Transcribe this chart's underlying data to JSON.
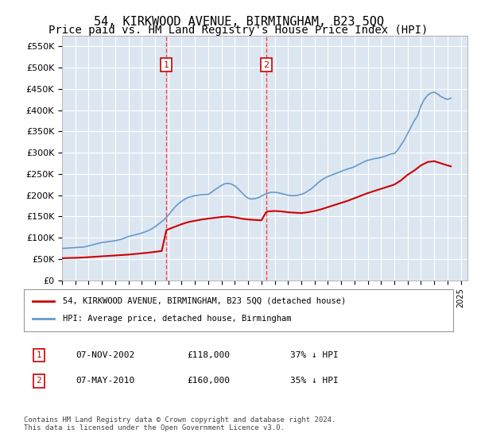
{
  "title": "54, KIRKWOOD AVENUE, BIRMINGHAM, B23 5QQ",
  "subtitle": "Price paid vs. HM Land Registry's House Price Index (HPI)",
  "title_fontsize": 11,
  "subtitle_fontsize": 10,
  "background_color": "#ffffff",
  "plot_bg_color": "#dce6f1",
  "grid_color": "#ffffff",
  "ylim": [
    0,
    575000
  ],
  "yticks": [
    0,
    50000,
    100000,
    150000,
    200000,
    250000,
    300000,
    350000,
    400000,
    450000,
    500000,
    550000
  ],
  "xlim_start": 1995.0,
  "xlim_end": 2025.5,
  "sale1_x": 2002.85,
  "sale1_y": 118000,
  "sale2_x": 2010.35,
  "sale2_y": 160000,
  "sale_color": "#cc0000",
  "hpi_color": "#6699cc",
  "marker_box_color": "#cc0000",
  "dashed_line_color": "#ff4444",
  "legend_label_red": "54, KIRKWOOD AVENUE, BIRMINGHAM, B23 5QQ (detached house)",
  "legend_label_blue": "HPI: Average price, detached house, Birmingham",
  "table_row1": [
    "1",
    "07-NOV-2002",
    "£118,000",
    "37% ↓ HPI"
  ],
  "table_row2": [
    "2",
    "07-MAY-2010",
    "£160,000",
    "35% ↓ HPI"
  ],
  "footnote": "Contains HM Land Registry data © Crown copyright and database right 2024.\nThis data is licensed under the Open Government Licence v3.0.",
  "hpi_years": [
    1995.0,
    1995.25,
    1995.5,
    1995.75,
    1996.0,
    1996.25,
    1996.5,
    1996.75,
    1997.0,
    1997.25,
    1997.5,
    1997.75,
    1998.0,
    1998.25,
    1998.5,
    1998.75,
    1999.0,
    1999.25,
    1999.5,
    1999.75,
    2000.0,
    2000.25,
    2000.5,
    2000.75,
    2001.0,
    2001.25,
    2001.5,
    2001.75,
    2002.0,
    2002.25,
    2002.5,
    2002.75,
    2003.0,
    2003.25,
    2003.5,
    2003.75,
    2004.0,
    2004.25,
    2004.5,
    2004.75,
    2005.0,
    2005.25,
    2005.5,
    2005.75,
    2006.0,
    2006.25,
    2006.5,
    2006.75,
    2007.0,
    2007.25,
    2007.5,
    2007.75,
    2008.0,
    2008.25,
    2008.5,
    2008.75,
    2009.0,
    2009.25,
    2009.5,
    2009.75,
    2010.0,
    2010.25,
    2010.5,
    2010.75,
    2011.0,
    2011.25,
    2011.5,
    2011.75,
    2012.0,
    2012.25,
    2012.5,
    2012.75,
    2013.0,
    2013.25,
    2013.5,
    2013.75,
    2014.0,
    2014.25,
    2014.5,
    2014.75,
    2015.0,
    2015.25,
    2015.5,
    2015.75,
    2016.0,
    2016.25,
    2016.5,
    2016.75,
    2017.0,
    2017.25,
    2017.5,
    2017.75,
    2018.0,
    2018.25,
    2018.5,
    2018.75,
    2019.0,
    2019.25,
    2019.5,
    2019.75,
    2020.0,
    2020.25,
    2020.5,
    2020.75,
    2021.0,
    2021.25,
    2021.5,
    2021.75,
    2022.0,
    2022.25,
    2022.5,
    2022.75,
    2023.0,
    2023.25,
    2023.5,
    2023.75,
    2024.0,
    2024.25
  ],
  "hpi_values": [
    75000,
    75500,
    76000,
    76500,
    77000,
    77500,
    78000,
    79000,
    81000,
    83000,
    85000,
    87000,
    89000,
    90000,
    91000,
    92000,
    93000,
    95000,
    97000,
    100000,
    103000,
    105000,
    107000,
    109000,
    111000,
    114000,
    117000,
    121000,
    126000,
    132000,
    138000,
    145000,
    153000,
    163000,
    172000,
    180000,
    186000,
    191000,
    195000,
    197000,
    199000,
    200000,
    201000,
    201500,
    202000,
    207000,
    213000,
    218000,
    223000,
    227000,
    228000,
    226000,
    222000,
    215000,
    207000,
    199000,
    193000,
    191000,
    192000,
    194000,
    198000,
    202000,
    205000,
    207000,
    207000,
    206000,
    204000,
    202000,
    200000,
    199000,
    199000,
    200000,
    202000,
    205000,
    210000,
    215000,
    222000,
    229000,
    235000,
    240000,
    244000,
    247000,
    250000,
    253000,
    256000,
    259000,
    262000,
    264000,
    267000,
    271000,
    275000,
    279000,
    282000,
    284000,
    286000,
    287000,
    289000,
    291000,
    294000,
    297000,
    298000,
    306000,
    318000,
    330000,
    345000,
    360000,
    375000,
    387000,
    410000,
    425000,
    435000,
    440000,
    442000,
    438000,
    432000,
    428000,
    425000,
    428000
  ],
  "red_years": [
    1995.0,
    1995.5,
    1996.0,
    1996.5,
    1997.0,
    1997.5,
    1998.0,
    1998.5,
    1999.0,
    1999.5,
    2000.0,
    2000.5,
    2001.0,
    2001.5,
    2002.0,
    2002.5,
    2002.85,
    2003.0,
    2003.5,
    2004.0,
    2004.5,
    2005.0,
    2005.5,
    2006.0,
    2006.5,
    2007.0,
    2007.5,
    2008.0,
    2008.5,
    2009.0,
    2009.5,
    2010.0,
    2010.35,
    2010.5,
    2011.0,
    2011.5,
    2012.0,
    2012.5,
    2013.0,
    2013.5,
    2014.0,
    2014.5,
    2015.0,
    2015.5,
    2016.0,
    2016.5,
    2017.0,
    2017.5,
    2018.0,
    2018.5,
    2019.0,
    2019.5,
    2020.0,
    2020.5,
    2021.0,
    2021.5,
    2022.0,
    2022.5,
    2023.0,
    2023.5,
    2024.0,
    2024.25
  ],
  "red_values": [
    52000,
    52500,
    53000,
    53500,
    54500,
    55500,
    56500,
    57500,
    58500,
    59500,
    60500,
    62000,
    63500,
    65000,
    67000,
    69000,
    118000,
    120000,
    126000,
    132000,
    137000,
    140000,
    143000,
    145000,
    147000,
    149000,
    150000,
    148000,
    145000,
    143000,
    142000,
    141000,
    160000,
    162000,
    163000,
    162000,
    160000,
    159000,
    158000,
    160000,
    163000,
    167000,
    172000,
    177000,
    182000,
    187000,
    193000,
    199000,
    205000,
    210000,
    215000,
    220000,
    225000,
    235000,
    248000,
    258000,
    270000,
    278000,
    280000,
    275000,
    270000,
    268000
  ]
}
